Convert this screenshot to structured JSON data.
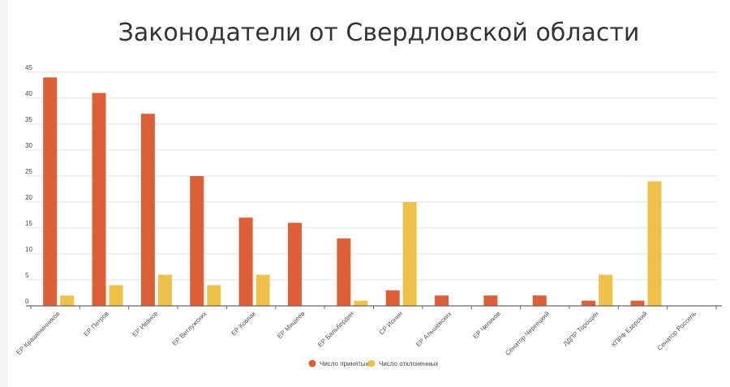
{
  "chart_data": {
    "type": "bar",
    "title": "Законодатели от Свердловской области",
    "categories": [
      "ЕР Крашенинников",
      "ЕР Петров",
      "ЕР Иванов",
      "ЕР Ветлужских",
      "ЕР Ковпак",
      "ЕР Мишеев",
      "ЕР Бальбердин",
      "СР Ионин",
      "ЕР Альшевских",
      "ЕР Чепиков",
      "Сенатор Черкецкий",
      "ЛДПР Торощин",
      "КПРФ Езерский",
      "Сенатор Россель"
    ],
    "series": [
      {
        "name": "Число принятых",
        "color": "#dd5f37",
        "values": [
          44,
          41,
          37,
          25,
          17,
          16,
          13,
          3,
          2,
          2,
          2,
          1,
          1,
          0
        ]
      },
      {
        "name": "Число отклоненных",
        "color": "#eec24a",
        "values": [
          2,
          4,
          6,
          4,
          6,
          0,
          1,
          20,
          0,
          0,
          0,
          6,
          24,
          0
        ]
      }
    ],
    "ylim": [
      0,
      45
    ],
    "yticks": [
      0,
      5,
      10,
      15,
      20,
      25,
      30,
      35,
      40,
      45
    ],
    "grid": true,
    "legend_position": "bottom-center"
  }
}
